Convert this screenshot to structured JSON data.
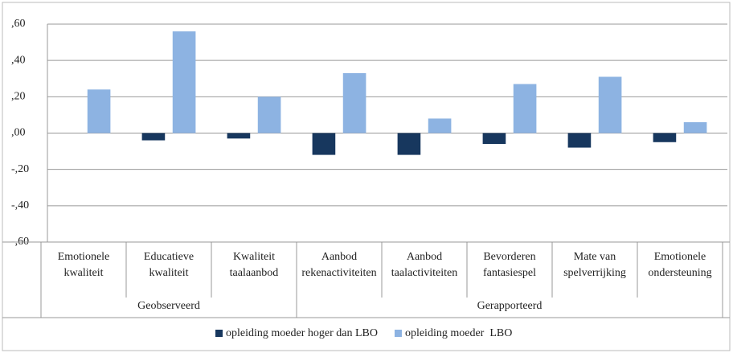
{
  "chart_data": {
    "type": "bar",
    "categories": [
      "Emotionele\nkwaliteit",
      "Educatieve\nkwaliteit",
      "Kwaliteit\ntaalaanbod",
      "Aanbod\nrekenactiviteiten",
      "Aanbod\ntaalactiviteiten",
      "Bevorderen\nfantasiespel",
      "Mate van\nspelverrijking",
      "Emotionele\nondersteuning"
    ],
    "groups": [
      {
        "name": "Geobserveerd",
        "count": 3
      },
      {
        "name": "Gerapporteerd",
        "count": 5
      }
    ],
    "series": [
      {
        "name": "opleiding moeder hoger dan LBO",
        "color": "#17375e",
        "values": [
          0,
          -0.04,
          -0.03,
          -0.12,
          -0.12,
          -0.06,
          -0.08,
          -0.05
        ]
      },
      {
        "name": "opleiding moeder  LBO",
        "color": "#8db3e2",
        "values": [
          0.24,
          0.56,
          0.2,
          0.33,
          0.08,
          0.27,
          0.31,
          0.06
        ]
      }
    ],
    "ylim": [
      -0.6,
      0.6
    ],
    "yticks": [
      {
        "value": -0.6,
        "label": "-,60"
      },
      {
        "value": -0.4,
        "label": "-,40"
      },
      {
        "value": -0.2,
        "label": "-,20"
      },
      {
        "value": 0,
        "label": ",00"
      },
      {
        "value": 0.2,
        "label": ",20"
      },
      {
        "value": 0.4,
        "label": ",40"
      },
      {
        "value": 0.6,
        "label": ",60"
      }
    ],
    "grid": true,
    "legend": "bottom"
  }
}
